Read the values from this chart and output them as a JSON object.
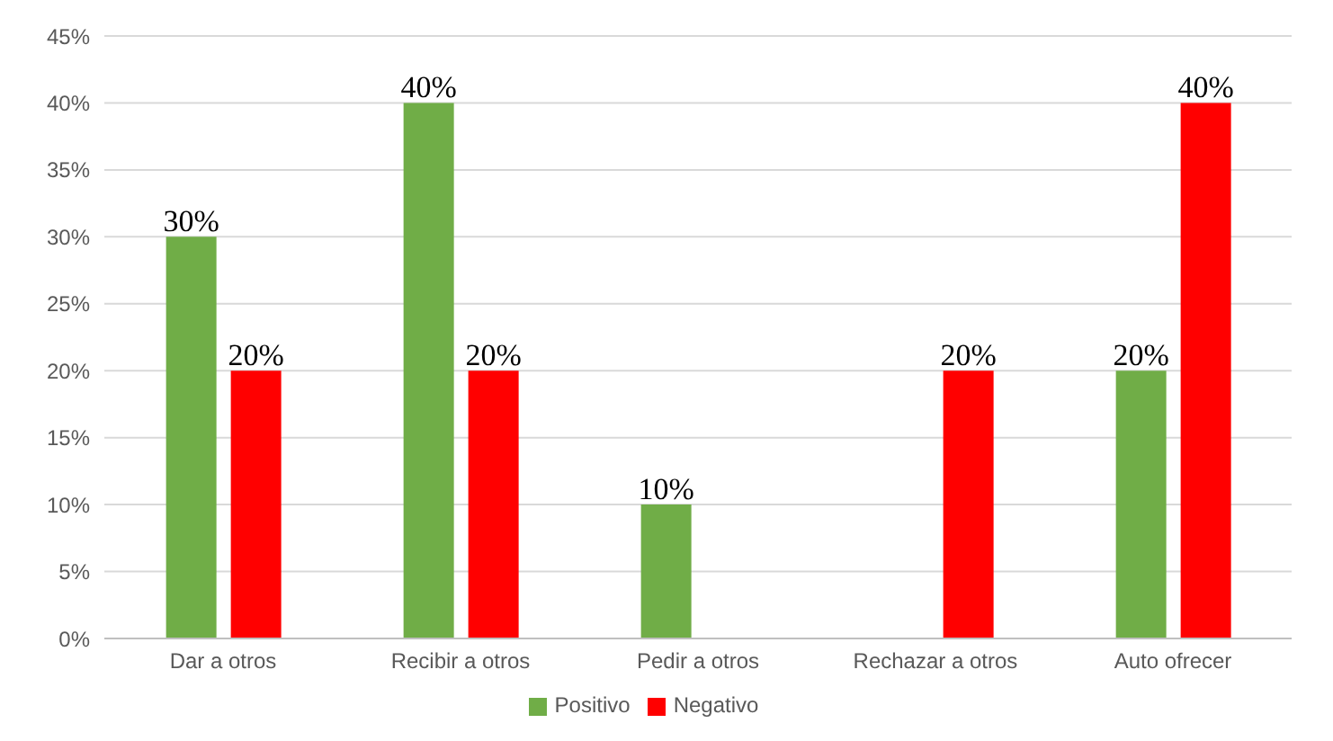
{
  "chart_data": {
    "type": "bar",
    "categories": [
      "Dar a otros",
      "Recibir a otros",
      "Pedir a otros",
      "Rechazar a otros",
      "Auto ofrecer"
    ],
    "series": [
      {
        "name": "Positivo",
        "color": "#70ad47",
        "values": [
          30,
          40,
          10,
          null,
          20
        ],
        "value_labels": [
          "30%",
          "40%",
          "10%",
          null,
          "20%"
        ]
      },
      {
        "name": "Negativo",
        "color": "#ff0000",
        "values": [
          20,
          20,
          null,
          20,
          40
        ],
        "value_labels": [
          "20%",
          "20%",
          null,
          "20%",
          "40%"
        ]
      }
    ],
    "ylim": [
      0,
      45
    ],
    "yticks": [
      {
        "value": 0,
        "label": "0%"
      },
      {
        "value": 5,
        "label": "5%"
      },
      {
        "value": 10,
        "label": "10%"
      },
      {
        "value": 15,
        "label": "15%"
      },
      {
        "value": 20,
        "label": "20%"
      },
      {
        "value": 25,
        "label": "25%"
      },
      {
        "value": 30,
        "label": "30%"
      },
      {
        "value": 35,
        "label": "35%"
      },
      {
        "value": 40,
        "label": "40%"
      },
      {
        "value": 45,
        "label": "45%"
      }
    ],
    "grid": "y",
    "legend": "bottom"
  }
}
